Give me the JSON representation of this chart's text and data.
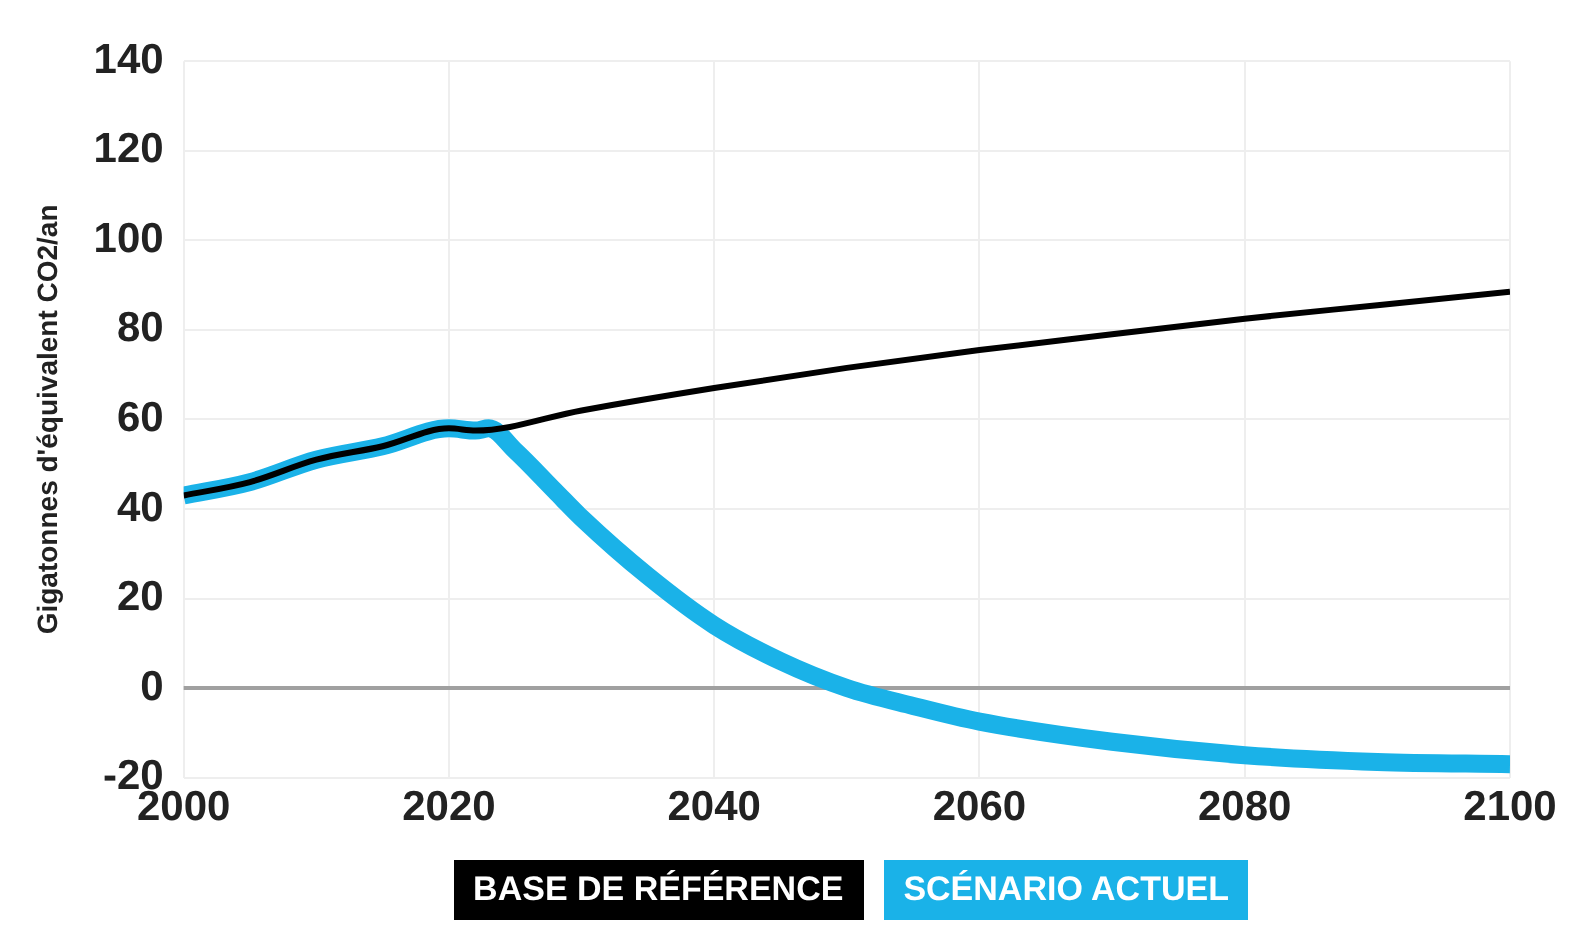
{
  "chart_data": {
    "type": "line",
    "ylabel": "Gigatonnes d'équivalent CO2/an",
    "xlim": [
      2000,
      2100
    ],
    "xticks": [
      2000,
      2020,
      2040,
      2060,
      2080,
      2100
    ],
    "ylim": [
      -20,
      140
    ],
    "yticks": [
      -20,
      0,
      20,
      40,
      60,
      80,
      100,
      120,
      140
    ],
    "grid": true,
    "legend": "bottom",
    "marker": "none",
    "line_style": "solid",
    "ref_lines": [
      {
        "axis": "y",
        "value": 0,
        "color": "#a0a0a0"
      }
    ],
    "series": [
      {
        "name": "BASE DE RÉFÉRENCE",
        "color": "#000000",
        "x": [
          2000,
          2005,
          2010,
          2015,
          2020,
          2022,
          2030,
          2040,
          2050,
          2060,
          2070,
          2080,
          2090,
          2100
        ],
        "values": [
          43,
          46,
          51,
          54,
          58,
          57.5,
          62,
          67,
          71.5,
          75.5,
          79,
          82.5,
          85.5,
          88.5
        ]
      },
      {
        "name": "SCÉNARIO ACTUEL",
        "color": "#1ab2e8",
        "x": [
          2000,
          2005,
          2010,
          2015,
          2020,
          2022,
          2023,
          2025,
          2028,
          2030,
          2035,
          2040,
          2045,
          2050,
          2055,
          2060,
          2070,
          2080,
          2090,
          2100
        ],
        "values": [
          43,
          46,
          51,
          54,
          58,
          57.5,
          58,
          53,
          44,
          38,
          25,
          14,
          6,
          0,
          -4,
          -7.5,
          -12,
          -15,
          -16.5,
          -17
        ]
      }
    ]
  }
}
